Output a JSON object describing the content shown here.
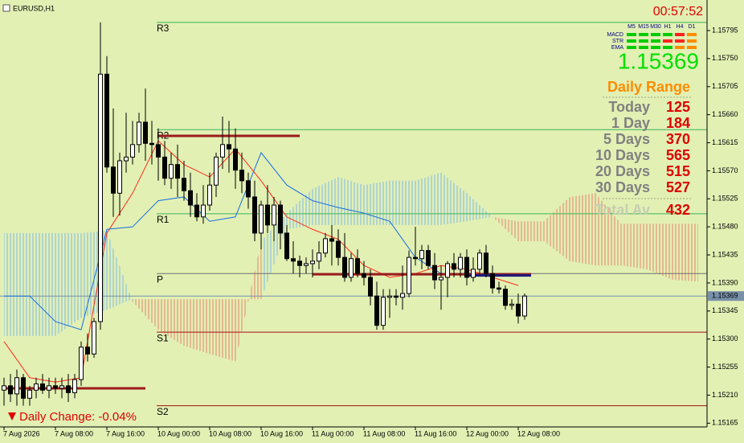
{
  "symbol": "EURUSD,H1",
  "clock": "00:57:52",
  "signals": {
    "timeframes": [
      "M5",
      "M15",
      "M30",
      "H1",
      "H4",
      "D1"
    ],
    "rows": [
      {
        "name": "MACD",
        "colors": [
          "#00cc00",
          "#00cc00",
          "#00cc00",
          "#00cc00",
          "#ff2020",
          "#ff8c00"
        ]
      },
      {
        "name": "STR",
        "colors": [
          "#00cc00",
          "#00cc00",
          "#00cc00",
          "#ff2020",
          "#ff2020",
          "#ff8c00"
        ]
      },
      {
        "name": "EMA",
        "colors": [
          "#00cc00",
          "#00cc00",
          "#00cc00",
          "#00cc00",
          "#ff8c00",
          "#ff8c00"
        ]
      }
    ]
  },
  "daily_range": {
    "title": "Daily Range",
    "rows": [
      {
        "label": "Today",
        "value": 125
      },
      {
        "label": "1 Day",
        "value": 184
      },
      {
        "label": "5 Days",
        "value": 370
      },
      {
        "label": "10 Days",
        "value": 565
      },
      {
        "label": "20 Days",
        "value": 515
      },
      {
        "label": "30 Days",
        "value": 527
      }
    ],
    "total": {
      "label": "Total Av",
      "value": 432
    }
  },
  "daily_change": {
    "label": "Daily Change:",
    "value": -0.04,
    "value_label": "-0.04%"
  },
  "chart_data": {
    "type": "candlestick",
    "bid": 1.15369,
    "xlim": [
      -0.625,
      109.375
    ],
    "xticks": [
      {
        "value": 0,
        "label": "7 Aug 2026"
      },
      {
        "value": 8,
        "label": "7 Aug 08:00"
      },
      {
        "value": 16,
        "label": "7 Aug 16:00"
      },
      {
        "value": 24,
        "label": "10 Aug 00:00"
      },
      {
        "value": 32,
        "label": "10 Aug 08:00"
      },
      {
        "value": 40,
        "label": "10 Aug 16:00"
      },
      {
        "value": 48,
        "label": "11 Aug 00:00"
      },
      {
        "value": 56,
        "label": "11 Aug 08:00"
      },
      {
        "value": 64,
        "label": "11 Aug 16:00"
      },
      {
        "value": 72,
        "label": "12 Aug 00:00"
      },
      {
        "value": 80,
        "label": "12 Aug 08:00"
      }
    ],
    "ylim": [
      1.15159,
      1.15844
    ],
    "yticks": [
      1.15795,
      {
        "value": 1.1575,
        "label": "1.15750"
      },
      1.15705,
      {
        "value": 1.1566,
        "label": "1.15660"
      },
      1.15615,
      {
        "value": 1.1557,
        "label": "1.15570"
      },
      1.15525,
      {
        "value": 1.1548,
        "label": "1.15480"
      },
      1.15435,
      {
        "value": 1.1539,
        "label": "1.15390"
      },
      1.15345,
      {
        "value": 1.153,
        "label": "1.15300"
      },
      1.15255,
      {
        "value": 1.1521,
        "label": "1.15210"
      },
      1.15165
    ],
    "open": [
      1.15218,
      1.15225,
      1.15212,
      1.15238,
      1.15205,
      1.15218,
      1.15228,
      1.15218,
      1.15225,
      1.15221,
      1.15225,
      1.15214,
      1.15235,
      1.15287,
      1.15276,
      1.15328,
      1.15725,
      1.15576,
      1.15534,
      1.15586,
      1.15592,
      1.15612,
      1.15648,
      1.15614,
      1.15612,
      1.15592,
      1.15558,
      1.1558,
      1.15558,
      1.15538,
      1.15515,
      1.15496,
      1.15515,
      1.15547,
      1.15592,
      1.15612,
      1.15605,
      1.15571,
      1.15554,
      1.15528,
      1.1547,
      1.15515,
      1.15483,
      1.15515,
      1.1547,
      1.15429,
      1.15425,
      1.15418,
      1.15421,
      1.15425,
      1.15438,
      1.15461,
      1.15457,
      1.15431,
      1.15399,
      1.15429,
      1.15405,
      1.15399,
      1.15369,
      1.15322,
      1.15367,
      1.15369,
      1.15367,
      1.15373,
      1.15431,
      1.15429,
      1.15442,
      1.15418,
      1.15395,
      1.15399,
      1.15421,
      1.15412,
      1.15431,
      1.15399,
      1.15412,
      1.15438,
      1.15405,
      1.15382,
      1.1538,
      1.15354,
      1.15356,
      1.15337
    ],
    "high": [
      1.15238,
      1.15244,
      1.15251,
      1.15244,
      1.15225,
      1.15238,
      1.15244,
      1.15238,
      1.15238,
      1.15238,
      1.15244,
      1.15244,
      1.15296,
      1.15309,
      1.15334,
      1.15808,
      1.15754,
      1.1567,
      1.15599,
      1.15663,
      1.1565,
      1.15663,
      1.15702,
      1.1565,
      1.15638,
      1.15618,
      1.15599,
      1.15612,
      1.15586,
      1.15567,
      1.15534,
      1.15547,
      1.15567,
      1.15599,
      1.15657,
      1.1565,
      1.15638,
      1.15599,
      1.15567,
      1.15554,
      1.15522,
      1.15547,
      1.15528,
      1.15522,
      1.15483,
      1.15457,
      1.15434,
      1.15431,
      1.15444,
      1.15457,
      1.1547,
      1.15483,
      1.15476,
      1.1547,
      1.15438,
      1.15444,
      1.15425,
      1.15412,
      1.15392,
      1.1538,
      1.1538,
      1.1538,
      1.15418,
      1.15442,
      1.1548,
      1.15451,
      1.15451,
      1.15438,
      1.15418,
      1.15425,
      1.15438,
      1.15438,
      1.15444,
      1.15431,
      1.15444,
      1.15451,
      1.15418,
      1.15392,
      1.15386,
      1.15364,
      1.15373,
      1.15373
    ],
    "low": [
      1.15193,
      1.15199,
      1.15193,
      1.15193,
      1.15193,
      1.15205,
      1.15212,
      1.15205,
      1.15212,
      1.15205,
      1.15199,
      1.15205,
      1.15225,
      1.15264,
      1.1527,
      1.15315,
      1.15567,
      1.15496,
      1.15498,
      1.15567,
      1.1558,
      1.15599,
      1.15586,
      1.1558,
      1.15554,
      1.15547,
      1.15541,
      1.15528,
      1.15522,
      1.15496,
      1.15489,
      1.15485,
      1.15506,
      1.15528,
      1.15573,
      1.15567,
      1.15541,
      1.15534,
      1.15509,
      1.15457,
      1.15444,
      1.1547,
      1.15457,
      1.15444,
      1.15425,
      1.15405,
      1.15399,
      1.15405,
      1.15399,
      1.15412,
      1.15431,
      1.15418,
      1.15418,
      1.15392,
      1.15392,
      1.15399,
      1.15386,
      1.15354,
      1.15315,
      1.15315,
      1.15334,
      1.15354,
      1.15347,
      1.15367,
      1.15418,
      1.15412,
      1.15412,
      1.1538,
      1.15347,
      1.15367,
      1.15399,
      1.15399,
      1.15386,
      1.15392,
      1.15405,
      1.15399,
      1.15373,
      1.15373,
      1.15347,
      1.15347,
      1.15325,
      1.15331
    ],
    "close": [
      1.15225,
      1.15212,
      1.15238,
      1.15205,
      1.15218,
      1.15228,
      1.15218,
      1.15225,
      1.15221,
      1.15225,
      1.15214,
      1.15235,
      1.15287,
      1.15276,
      1.15328,
      1.15725,
      1.15576,
      1.15534,
      1.15586,
      1.15592,
      1.15612,
      1.15648,
      1.15614,
      1.15612,
      1.15592,
      1.15558,
      1.1558,
      1.15558,
      1.15538,
      1.15515,
      1.15496,
      1.15515,
      1.15547,
      1.15592,
      1.15612,
      1.15605,
      1.15571,
      1.15554,
      1.15528,
      1.1547,
      1.15515,
      1.15483,
      1.15515,
      1.1547,
      1.15429,
      1.15425,
      1.15418,
      1.15421,
      1.15425,
      1.15438,
      1.15461,
      1.15457,
      1.15431,
      1.15399,
      1.15429,
      1.15405,
      1.15399,
      1.15369,
      1.15322,
      1.15367,
      1.15369,
      1.15367,
      1.15373,
      1.15431,
      1.15429,
      1.15442,
      1.15418,
      1.15395,
      1.15399,
      1.15421,
      1.15412,
      1.15431,
      1.15399,
      1.15412,
      1.15438,
      1.15405,
      1.15382,
      1.1538,
      1.15354,
      1.15356,
      1.15337,
      1.15369
    ],
    "bull_color": "#ffffff",
    "bear_color": "#000000",
    "levels": [
      {
        "name": "R3",
        "value": 1.15808,
        "color": "#3cb35a"
      },
      {
        "name": "R2",
        "value": 1.15636,
        "color": "#3cb35a"
      },
      {
        "name": "R1",
        "value": 1.15501,
        "color": "#3cb35a"
      },
      {
        "name": "P",
        "value": 1.15405,
        "color": "#707070"
      },
      {
        "name": "S1",
        "value": 1.15311,
        "color": "#a01010"
      },
      {
        "name": "S2",
        "value": 1.15193,
        "color": "#a01010"
      }
    ],
    "segments": [
      {
        "value": 1.15626,
        "from": 24,
        "to": 46,
        "color": "#9b1b1b"
      },
      {
        "value": 1.15221,
        "from": 0,
        "to": 22,
        "color": "#9b1b1b"
      },
      {
        "value": 1.15404,
        "from": 48,
        "to": 82,
        "color": "#9b1b1b"
      },
      {
        "value": 1.15402,
        "from": 72,
        "to": 82,
        "color": "#1a1a80"
      }
    ],
    "cloud": {
      "x": [
        0,
        4,
        8,
        12,
        16,
        20,
        24,
        28,
        32,
        36,
        40,
        44,
        48,
        52,
        56,
        60,
        64,
        68,
        72,
        76,
        80,
        84,
        88,
        92,
        96,
        100,
        104,
        108
      ],
      "span_a": [
        1.1547,
        1.1547,
        1.1547,
        1.1547,
        1.15474,
        1.1536,
        1.15315,
        1.15289,
        1.15276,
        1.15264,
        1.15457,
        1.15502,
        1.15541,
        1.1556,
        1.15547,
        1.15554,
        1.15554,
        1.15567,
        1.15534,
        1.15496,
        1.15457,
        1.15457,
        1.15425,
        1.15418,
        1.15418,
        1.15412,
        1.15395,
        1.15392
      ],
      "span_b": [
        1.15305,
        1.15305,
        1.15305,
        1.15334,
        1.15347,
        1.15364,
        1.15364,
        1.15364,
        1.15364,
        1.15364,
        1.15364,
        1.15476,
        1.15483,
        1.15483,
        1.15483,
        1.15483,
        1.15483,
        1.15483,
        1.15489,
        1.15496,
        1.15489,
        1.15489,
        1.15528,
        1.15534,
        1.15485,
        1.15485,
        1.15485,
        1.15485
      ],
      "up_color": "#7fb8e6",
      "down_color": "#e8826e"
    },
    "lines": {
      "x": [
        0,
        4,
        8,
        12,
        16,
        20,
        24,
        28,
        32,
        36,
        40,
        44,
        48,
        52,
        56,
        60,
        64,
        68,
        72,
        76,
        80
      ],
      "series": [
        {
          "color": "#ff2a1a",
          "values": [
            1.15296,
            1.15238,
            1.15231,
            1.15238,
            1.1547,
            1.15534,
            1.15618,
            1.1558,
            1.1556,
            1.15605,
            1.15554,
            1.15496,
            1.15476,
            1.1546,
            1.15418,
            1.15399,
            1.15405,
            1.15418,
            1.15412,
            1.15399,
            1.15386
          ]
        },
        {
          "color": "#1a6ee0",
          "values": [
            1.15369,
            1.15369,
            1.15328,
            1.15315,
            1.15476,
            1.1548,
            1.15522,
            1.15528,
            1.15489,
            1.15496,
            1.15599,
            1.15547,
            1.15522,
            1.15511,
            1.15502,
            1.15489,
            1.15431,
            1.15405,
            1.15405,
            1.15405,
            1.15405
          ]
        }
      ]
    }
  }
}
